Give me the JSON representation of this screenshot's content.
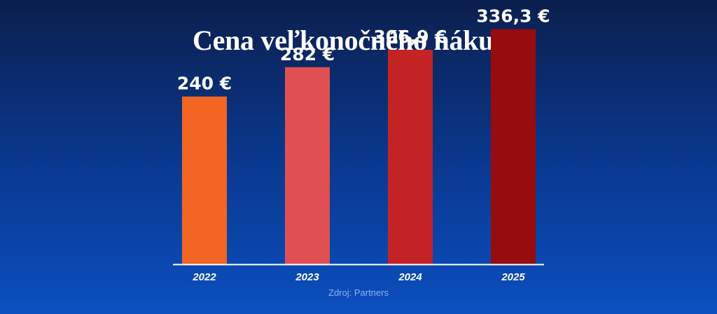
{
  "chart_data": {
    "type": "bar",
    "title": "Cena veľkonočného nákupu",
    "categories": [
      "2022",
      "2023",
      "2024",
      "2025"
    ],
    "values": [
      240,
      282,
      306.9,
      336.3
    ],
    "value_labels": [
      "240 €",
      "282 €",
      "306,9 €",
      "336,3 €"
    ],
    "unit": "€",
    "ylim": [
      0,
      340
    ],
    "grid": false,
    "legend": "none",
    "colors": [
      "#f26522",
      "#e05052",
      "#c42326",
      "#960c0f"
    ],
    "axis_color": "#ffffff"
  },
  "source": "Zdroj: Partners"
}
